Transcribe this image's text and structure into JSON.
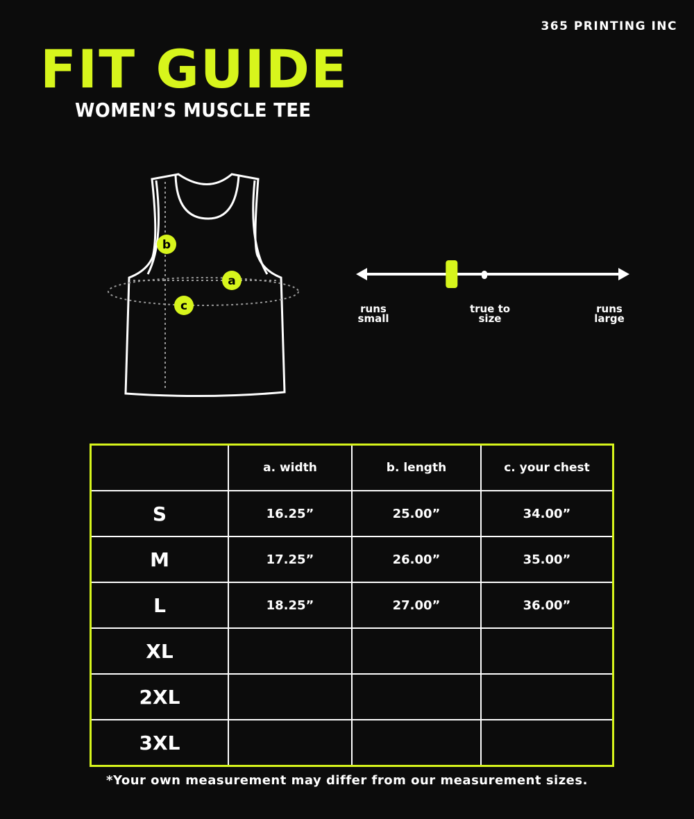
{
  "brand": "365 PRINTING INC",
  "title": "FIT GUIDE",
  "subtitle": "WOMEN’S MUSCLE TEE",
  "accent_color": "#d7f51c",
  "diagram": {
    "markers": [
      "a",
      "b",
      "c"
    ]
  },
  "fit_scale": {
    "left_label": "runs small",
    "center_label": "true to size",
    "right_label": "runs large",
    "indicator_fraction": 0.34
  },
  "table": {
    "headers": [
      "",
      "a. width",
      "b. length",
      "c. your chest"
    ],
    "rows": [
      {
        "size": "S",
        "width": "16.25”",
        "length": "25.00”",
        "chest": "34.00”"
      },
      {
        "size": "M",
        "width": "17.25”",
        "length": "26.00”",
        "chest": "35.00”"
      },
      {
        "size": "L",
        "width": "18.25”",
        "length": "27.00”",
        "chest": "36.00”"
      },
      {
        "size": "XL",
        "width": "",
        "length": "",
        "chest": ""
      },
      {
        "size": "2XL",
        "width": "",
        "length": "",
        "chest": ""
      },
      {
        "size": "3XL",
        "width": "",
        "length": "",
        "chest": ""
      }
    ]
  },
  "footnote": "*Your own measurement may differ from our measurement sizes."
}
